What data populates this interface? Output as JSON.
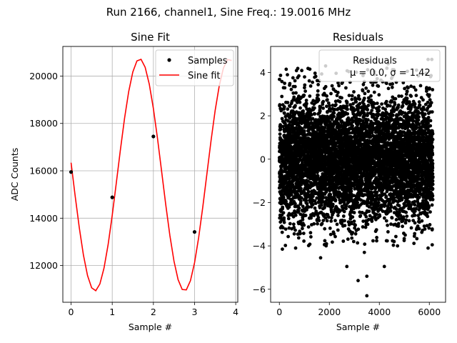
{
  "suptitle": "Run 2166, channel1, Sine Freq.: 19.0016 MHz",
  "chart_data": [
    {
      "type": "line",
      "title": "Sine Fit",
      "xlabel": "Sample #",
      "ylabel": "ADC Counts",
      "xlim": [
        -0.2,
        4.05
      ],
      "ylim": [
        10450,
        21250
      ],
      "xticks": [
        0,
        1,
        2,
        3,
        4
      ],
      "yticks": [
        12000,
        14000,
        16000,
        18000,
        20000
      ],
      "grid": true,
      "legend_position": "upper-right",
      "series": [
        {
          "name": "Samples",
          "style": "points",
          "color": "#000000",
          "x": [
            0,
            1,
            2,
            3
          ],
          "y": [
            15950,
            14880,
            17450,
            13420
          ]
        },
        {
          "name": "Sine fit",
          "style": "line",
          "color": "#ff0000",
          "model": {
            "offset": 15830,
            "amplitude": 4900,
            "cycles_per_sample": 0.46,
            "phase_deg": 174
          },
          "x_range": [
            0,
            3.9
          ],
          "num_points": 40
        }
      ]
    },
    {
      "type": "scatter",
      "title": "Residuals",
      "xlabel": "Sample #",
      "ylabel": "",
      "xlim": [
        -350,
        6650
      ],
      "ylim": [
        -6.6,
        5.2
      ],
      "xticks": [
        0,
        2000,
        4000,
        6000
      ],
      "yticks": [
        -6,
        -4,
        -2,
        0,
        2,
        4
      ],
      "grid": false,
      "legend": {
        "title": "Residuals",
        "entry": "μ = 0.0, σ = 1.42",
        "position": "upper-right"
      },
      "series": [
        {
          "name": "Residuals",
          "color": "#000000",
          "distribution": {
            "n": 6144,
            "x_min": 0,
            "x_max": 6143,
            "mean": 0.0,
            "sigma": 1.42
          },
          "notable_points": [
            {
              "x": 3500,
              "y": -6.3
            },
            {
              "x": 3150,
              "y": -5.6
            },
            {
              "x": 3500,
              "y": -5.4
            },
            {
              "x": 2700,
              "y": -4.95
            },
            {
              "x": 4200,
              "y": -4.95
            },
            {
              "x": 1650,
              "y": -4.55
            },
            {
              "x": 3400,
              "y": -4.3
            },
            {
              "x": 120,
              "y": -4.15
            },
            {
              "x": 650,
              "y": -4.1
            },
            {
              "x": 5950,
              "y": -4.1
            },
            {
              "x": 3550,
              "y": 4.5
            },
            {
              "x": 5950,
              "y": 4.6
            },
            {
              "x": 6100,
              "y": 4.6
            },
            {
              "x": 1850,
              "y": 4.3
            },
            {
              "x": 4350,
              "y": 4.4
            }
          ]
        }
      ]
    }
  ]
}
